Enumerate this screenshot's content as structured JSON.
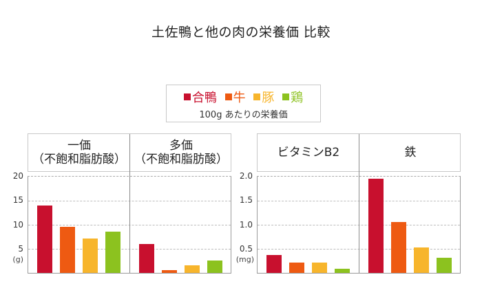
{
  "title": "土佐鴨と他の肉の栄養価 比較",
  "legend": {
    "items": [
      {
        "label": "合鴨",
        "color": "#c8102e"
      },
      {
        "label": "牛",
        "color": "#ee5a12"
      },
      {
        "label": "豚",
        "color": "#f7b52c"
      },
      {
        "label": "鶏",
        "color": "#8cc21f"
      }
    ],
    "subtitle": "100g あたりの栄養価"
  },
  "left_group": {
    "headers": [
      {
        "line1": "一価",
        "line2": "（不飽和脂肪酸）"
      },
      {
        "line1": "多価",
        "line2": "（不飽和脂肪酸）"
      }
    ],
    "yticks": [
      "20",
      "15",
      "10",
      "5"
    ],
    "unit": "(g)"
  },
  "right_group": {
    "headers": [
      {
        "line1": "ビタミンB2"
      },
      {
        "line1": "鉄"
      }
    ],
    "yticks": [
      "2.0",
      "1.5",
      "1.0",
      "0.5"
    ],
    "unit": "(mg)"
  },
  "chart_data": [
    {
      "type": "bar",
      "title": "一価（不飽和脂肪酸）",
      "categories": [
        "合鴨",
        "牛",
        "豚",
        "鶏"
      ],
      "values": [
        14.0,
        9.5,
        7.1,
        8.6
      ],
      "ylabel": "(g)",
      "ylim": [
        0,
        20
      ],
      "yticks": [
        5,
        10,
        15,
        20
      ],
      "grid": true
    },
    {
      "type": "bar",
      "title": "多価（不飽和脂肪酸）",
      "categories": [
        "合鴨",
        "牛",
        "豚",
        "鶏"
      ],
      "values": [
        6.0,
        0.6,
        1.6,
        2.6
      ],
      "ylabel": "(g)",
      "ylim": [
        0,
        20
      ],
      "yticks": [
        5,
        10,
        15,
        20
      ],
      "grid": true
    },
    {
      "type": "bar",
      "title": "ビタミンB2",
      "categories": [
        "合鴨",
        "牛",
        "豚",
        "鶏"
      ],
      "values": [
        0.37,
        0.22,
        0.21,
        0.09
      ],
      "ylabel": "(mg)",
      "ylim": [
        0,
        2.0
      ],
      "yticks": [
        0.5,
        1.0,
        1.5,
        2.0
      ],
      "grid": true
    },
    {
      "type": "bar",
      "title": "鉄",
      "categories": [
        "合鴨",
        "牛",
        "豚",
        "鶏"
      ],
      "values": [
        1.95,
        1.05,
        0.53,
        0.32
      ],
      "ylabel": "(mg)",
      "ylim": [
        0,
        2.0
      ],
      "yticks": [
        0.5,
        1.0,
        1.5,
        2.0
      ],
      "grid": true
    }
  ]
}
